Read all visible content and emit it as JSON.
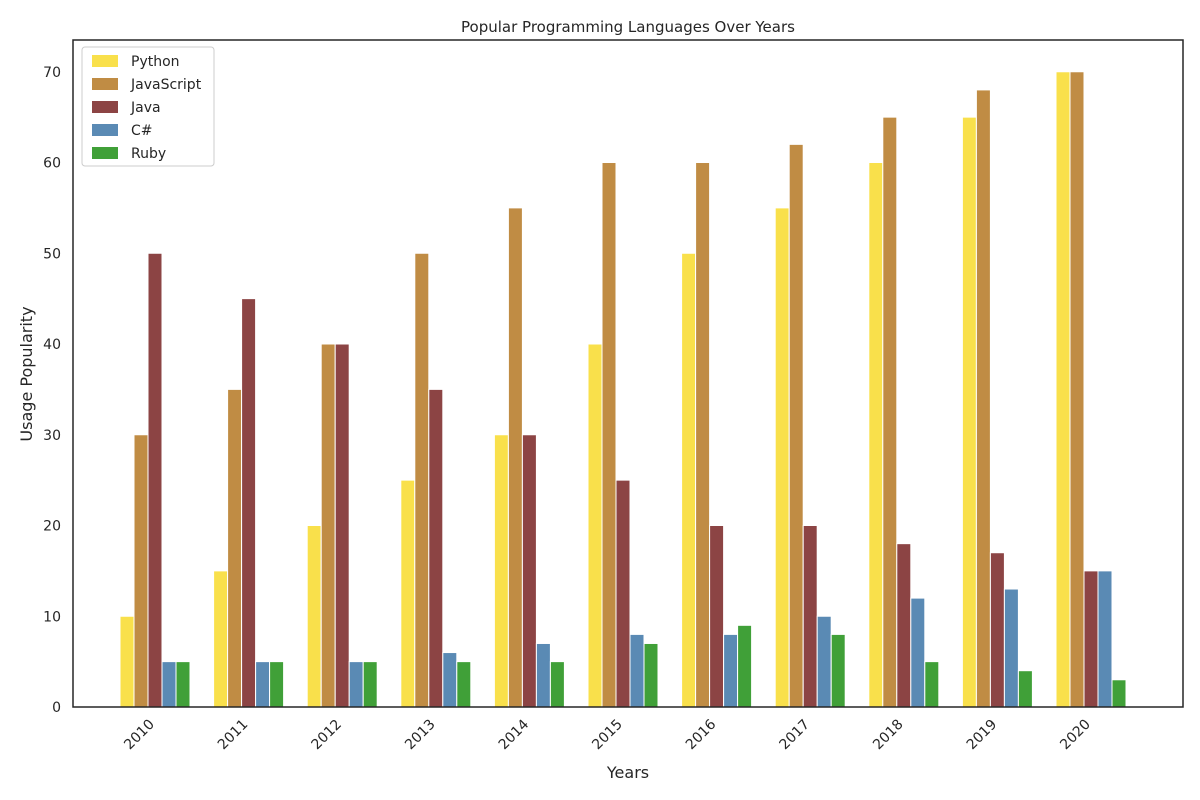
{
  "chart_data": {
    "type": "bar",
    "title": "Popular Programming Languages Over Years",
    "xlabel": "Years",
    "ylabel": "Usage Popularity",
    "categories": [
      "2010",
      "2011",
      "2012",
      "2013",
      "2014",
      "2015",
      "2016",
      "2017",
      "2018",
      "2019",
      "2020"
    ],
    "series": [
      {
        "name": "Python",
        "color": "#f9e04b",
        "values": [
          10,
          15,
          20,
          25,
          30,
          40,
          50,
          55,
          60,
          65,
          70
        ]
      },
      {
        "name": "JavaScript",
        "color": "#c08c44",
        "values": [
          30,
          35,
          40,
          50,
          55,
          60,
          60,
          62,
          65,
          68,
          70
        ]
      },
      {
        "name": "Java",
        "color": "#8c4444",
        "values": [
          50,
          45,
          40,
          35,
          30,
          25,
          20,
          20,
          18,
          17,
          15
        ]
      },
      {
        "name": "C#",
        "color": "#5a8ab4",
        "values": [
          5,
          5,
          5,
          6,
          7,
          8,
          8,
          10,
          12,
          13,
          15
        ]
      },
      {
        "name": "Ruby",
        "color": "#40a038",
        "values": [
          5,
          5,
          5,
          5,
          5,
          7,
          9,
          8,
          5,
          4,
          3
        ]
      }
    ],
    "ylim": [
      0,
      73.5
    ],
    "yticks": [
      0,
      10,
      20,
      30,
      40,
      50,
      60,
      70
    ],
    "grid": false,
    "legend_position": "top-left"
  }
}
